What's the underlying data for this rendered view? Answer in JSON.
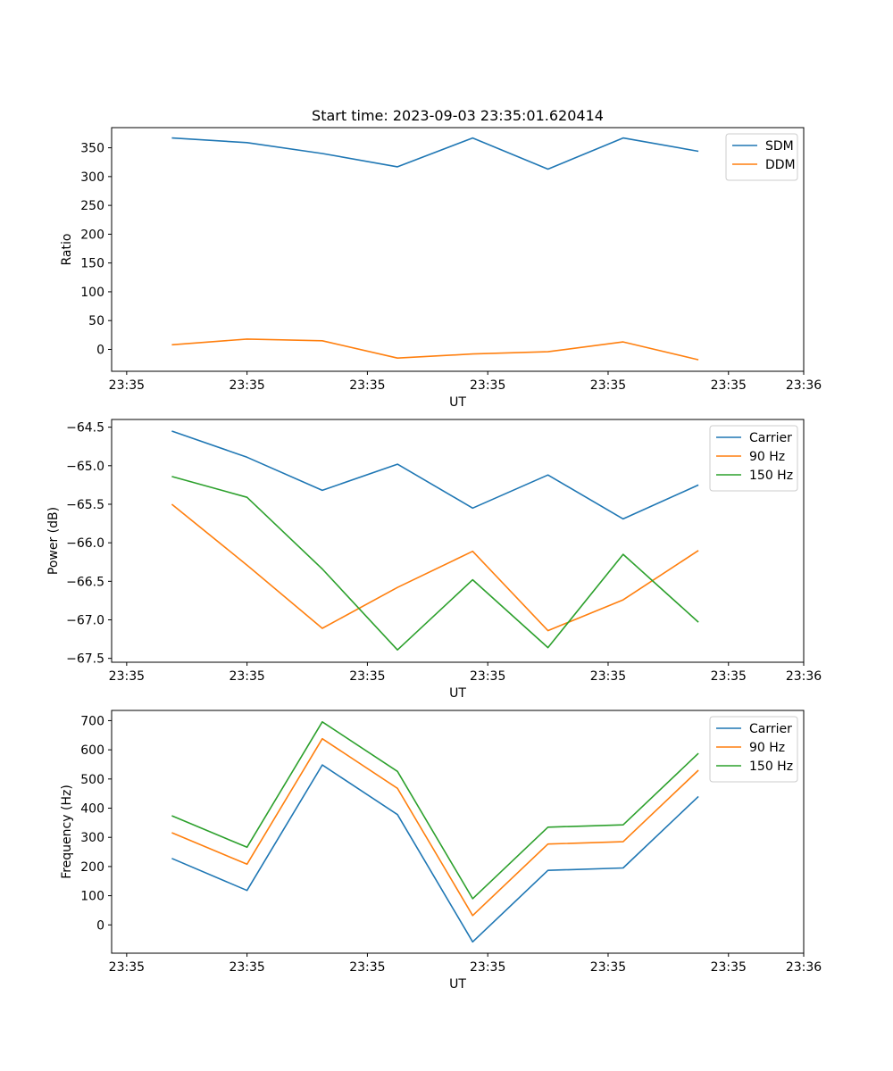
{
  "figure_title": "Start time: 2023-09-03 23:35:01.620414",
  "chart_data": [
    {
      "type": "line",
      "title": "Start time: 2023-09-03 23:35:01.620414",
      "xlabel": "UT",
      "ylabel": "Ratio",
      "x": [
        1,
        2,
        3,
        4,
        5,
        6,
        7,
        8
      ],
      "xlim": [
        0.2,
        9.4
      ],
      "x_ticks": [
        0.4,
        2.0,
        3.6,
        5.2,
        6.8,
        8.4,
        9.4
      ],
      "x_tick_labels": [
        "23:35",
        "23:35",
        "23:35",
        "23:35",
        "23:35",
        "23:35",
        "23:36"
      ],
      "ylim": [
        -38,
        385
      ],
      "y_ticks": [
        0,
        50,
        100,
        150,
        200,
        250,
        300,
        350
      ],
      "y_tick_labels": [
        "0",
        "50",
        "100",
        "150",
        "200",
        "250",
        "300",
        "350"
      ],
      "legend_position": "top-right",
      "series": [
        {
          "name": "SDM",
          "color": "#1f77b4",
          "values": [
            367,
            359,
            340,
            317,
            367,
            313,
            367,
            344
          ]
        },
        {
          "name": "DDM",
          "color": "#ff7f0e",
          "values": [
            8,
            18,
            15,
            -15,
            -8,
            -4,
            13,
            -18
          ]
        }
      ]
    },
    {
      "type": "line",
      "title": "",
      "xlabel": "UT",
      "ylabel": "Power (dB)",
      "x": [
        1,
        2,
        3,
        4,
        5,
        6,
        7,
        8
      ],
      "xlim": [
        0.2,
        9.4
      ],
      "x_ticks": [
        0.4,
        2.0,
        3.6,
        5.2,
        6.8,
        8.4,
        9.4
      ],
      "x_tick_labels": [
        "23:35",
        "23:35",
        "23:35",
        "23:35",
        "23:35",
        "23:35",
        "23:36"
      ],
      "ylim": [
        -67.55,
        -64.4
      ],
      "y_ticks": [
        -67.5,
        -67.0,
        -66.5,
        -66.0,
        -65.5,
        -65.0,
        -64.5
      ],
      "y_tick_labels": [
        "−67.5",
        "−67.0",
        "−66.5",
        "−66.0",
        "−65.5",
        "−65.0",
        "−64.5"
      ],
      "legend_position": "top-right",
      "series": [
        {
          "name": "Carrier",
          "color": "#1f77b4",
          "values": [
            -64.55,
            -64.89,
            -65.32,
            -64.98,
            -65.55,
            -65.12,
            -65.69,
            -65.25
          ]
        },
        {
          "name": "90 Hz",
          "color": "#ff7f0e",
          "values": [
            -65.5,
            -66.29,
            -67.11,
            -66.58,
            -66.11,
            -67.14,
            -66.74,
            -66.1
          ]
        },
        {
          "name": "150 Hz",
          "color": "#2ca02c",
          "values": [
            -65.14,
            -65.41,
            -66.34,
            -67.39,
            -66.48,
            -67.36,
            -66.15,
            -67.03
          ]
        }
      ]
    },
    {
      "type": "line",
      "title": "",
      "xlabel": "UT",
      "ylabel": "Frequency (Hz)",
      "x": [
        1,
        2,
        3,
        4,
        5,
        6,
        7,
        8
      ],
      "xlim": [
        0.2,
        9.4
      ],
      "x_ticks": [
        0.4,
        2.0,
        3.6,
        5.2,
        6.8,
        8.4,
        9.4
      ],
      "x_tick_labels": [
        "23:35",
        "23:35",
        "23:35",
        "23:35",
        "23:35",
        "23:35",
        "23:36"
      ],
      "ylim": [
        -97,
        735
      ],
      "y_ticks": [
        0,
        100,
        200,
        300,
        400,
        500,
        600,
        700
      ],
      "y_tick_labels": [
        "0",
        "100",
        "200",
        "300",
        "400",
        "500",
        "600",
        "700"
      ],
      "legend_position": "top-right",
      "series": [
        {
          "name": "Carrier",
          "color": "#1f77b4",
          "values": [
            228,
            118,
            548,
            378,
            -58,
            187,
            195,
            440
          ]
        },
        {
          "name": "90 Hz",
          "color": "#ff7f0e",
          "values": [
            316,
            208,
            638,
            468,
            32,
            277,
            285,
            530
          ]
        },
        {
          "name": "150 Hz",
          "color": "#2ca02c",
          "values": [
            374,
            266,
            696,
            526,
            90,
            335,
            343,
            588
          ]
        }
      ]
    }
  ]
}
